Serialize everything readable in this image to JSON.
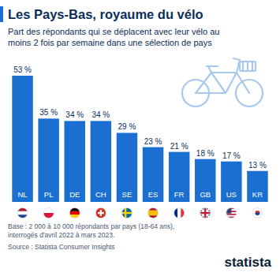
{
  "chart_data": {
    "type": "bar",
    "title": "Les Pays-Bas, royaume du vélo",
    "subtitle": "Part des répondants qui se déplacent avec leur vélo au moins 2 fois par semaine dans une sélection de pays",
    "categories": [
      "NL",
      "PL",
      "DE",
      "CH",
      "SE",
      "ES",
      "FR",
      "GB",
      "US",
      "KR"
    ],
    "values": [
      53,
      35,
      34,
      34,
      29,
      23,
      21,
      18,
      17,
      13
    ],
    "value_labels": [
      "53 %",
      "35 %",
      "34 %",
      "34 %",
      "29 %",
      "23 %",
      "21 %",
      "18 %",
      "17 %",
      "13 %"
    ],
    "color": "#1b6fd0",
    "ylim": [
      0,
      55
    ],
    "data_labels": true,
    "tick_labels": "x",
    "grid": false,
    "note": "Base : 2 000 à 10 000 répondants par pays (18-64 ans), interrogés d'avril 2022 à mars 2023.",
    "source": "Source : Statista Consumer Insights",
    "logo": "statista"
  }
}
